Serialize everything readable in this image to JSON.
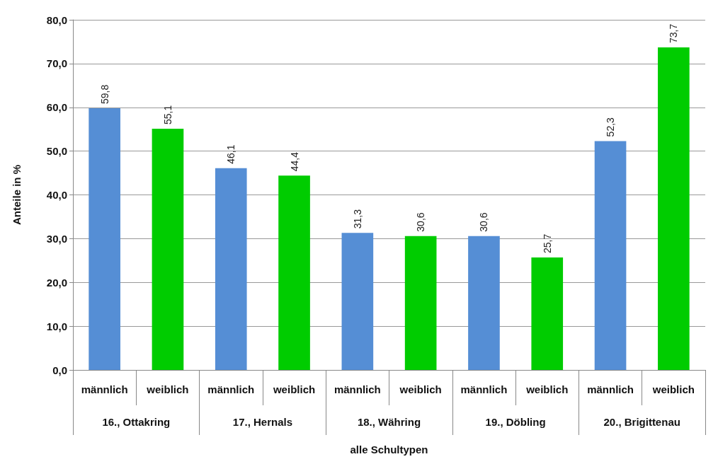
{
  "chart_data": {
    "type": "bar",
    "ylabel": "Anteile in %",
    "xlabel": "alle Schultypen",
    "categories": [
      "männlich",
      "weiblich",
      "männlich",
      "weiblich",
      "männlich",
      "weiblich",
      "männlich",
      "weiblich",
      "männlich",
      "weiblich"
    ],
    "values": [
      59.8,
      55.1,
      46.1,
      44.4,
      31.3,
      30.6,
      30.6,
      25.7,
      52.3,
      73.7
    ],
    "colors": [
      "#558ed5",
      "#00cc00",
      "#558ed5",
      "#00cc00",
      "#558ed5",
      "#00cc00",
      "#558ed5",
      "#00cc00",
      "#558ed5",
      "#00cc00"
    ],
    "value_labels": [
      "59,8",
      "55,1",
      "46,1",
      "44,4",
      "31,3",
      "30,6",
      "30,6",
      "25,7",
      "52,3",
      "73,7"
    ],
    "annotations": [
      "16., Ottakring",
      "17., Hernals",
      "18., Währing",
      "19., Döbling",
      "20., Brigittenau"
    ],
    "ylim": [
      0,
      80
    ],
    "yticks": [
      {
        "value": 0,
        "label": "0,0"
      },
      {
        "value": 10,
        "label": "10,0"
      },
      {
        "value": 20,
        "label": "20,0"
      },
      {
        "value": 30,
        "label": "30,0"
      },
      {
        "value": 40,
        "label": "40,0"
      },
      {
        "value": 50,
        "label": "50,0"
      },
      {
        "value": 60,
        "label": "60,0"
      },
      {
        "value": 70,
        "label": "70,0"
      },
      {
        "value": 80,
        "label": "80,0"
      }
    ],
    "grid": "y"
  }
}
